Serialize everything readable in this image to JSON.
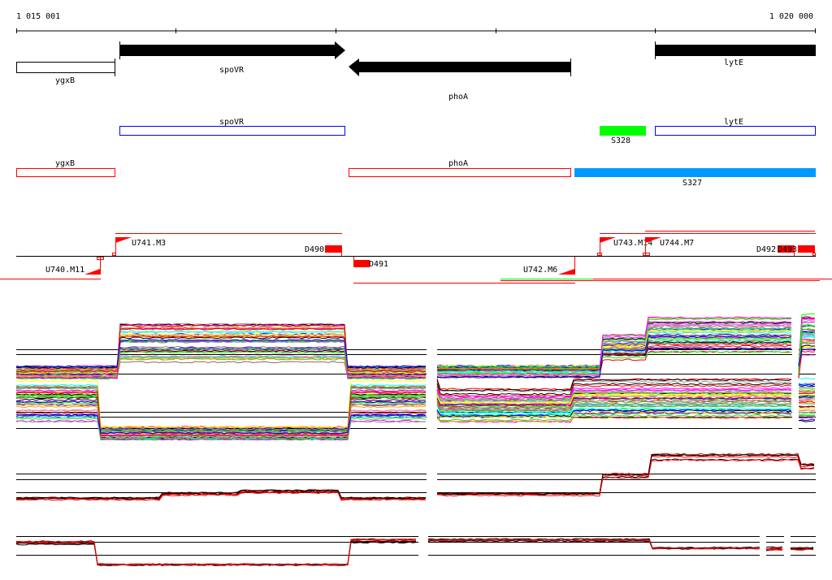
{
  "ruler": {
    "start_label": "1 015 001",
    "end_label": "1 020 000"
  },
  "genes": {
    "spoVR": "spoVR",
    "phoA": "phoA",
    "lytE": "lytE",
    "ygxB": "ygxB"
  },
  "blue_track": {
    "spoVR": "spoVR",
    "lytE": "lytE",
    "S328": "S328"
  },
  "red_track": {
    "ygxB": "ygxB",
    "phoA": "phoA",
    "S327": "S327"
  },
  "sites": {
    "U740": "U740.M11",
    "U741": "U741.M3",
    "D490": "D490",
    "D491": "D491",
    "U742": "U742.M6",
    "U743": "U743.M14",
    "U744": "U744.M7",
    "D492": "D492",
    "D493": "D493"
  },
  "colors": {
    "gene": "#000000",
    "blue_box": "#0000ff",
    "red_box": "#ff0000",
    "S328": "#00ff00",
    "S327": "#0099ff",
    "site": "#ff0000"
  },
  "profile_palette": [
    "#ff00ff",
    "#00ff00",
    "#ff0000",
    "#0000ff",
    "#00ffff",
    "#ff9900",
    "#999999",
    "#996666",
    "#ffff00",
    "#000000",
    "#ff66ff",
    "#33cc33"
  ]
}
